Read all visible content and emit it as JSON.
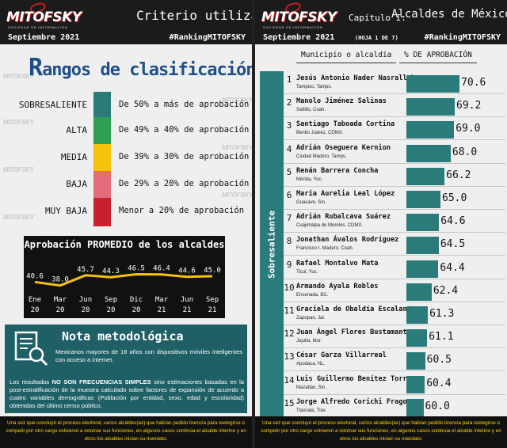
{
  "left": {
    "brand": {
      "name": "MITOFSKY",
      "tagline": "SOCIEDAD DE INFORMACIÓN"
    },
    "header_title": "Criterio utilizado",
    "date": "Septiembre 2021",
    "hashtag": "#RankingMITOFSKY",
    "rangos_title_first": "R",
    "rangos_title_rest": "angos de clasificación",
    "levels": [
      {
        "name": "SOBRESALIENTE",
        "desc": "De 50% a más de aprobación",
        "color": "#2a7b7a"
      },
      {
        "name": "ALTA",
        "desc": "De 49% a 40% de aprobación",
        "color": "#2f9e54"
      },
      {
        "name": "MEDIA",
        "desc": "De 39% a 30% de aprobación",
        "color": "#f4c20d"
      },
      {
        "name": "BAJA",
        "desc": "De 29% a 20% de aprobación",
        "color": "#e36b7a"
      },
      {
        "name": "MUY BAJA",
        "desc": "Menor a 20% de aprobación",
        "color": "#c8212e"
      }
    ],
    "nota_title": "Nota metodológica",
    "nota_p1": "Mexicanos mayores de 18 años con dispositivos móviles inteligentes con acceso a internet.",
    "nota_p2_before": "Los resultados ",
    "nota_p2_bold": "NO SON FRECUENCIAS SIMPLES",
    "nota_p2_after": " sino estimaciones basadas en la post-estratificación de la muestra calculado sobre factores de expansión de acuerdo a cuatro variables demográficas (Población por entidad, sexo, edad y escolaridad) obtenidas del último censo público.",
    "footer": "Una vez que concluyó el proceso electoral, varios alcaldes(as) que habían pedido licencia para reelegirse o competir por otro cargo volvieron a retomar sus funciones, en algunos casos continúa el alcalde interino y en otros los alcaldes inician su mandato."
  },
  "right": {
    "brand": {
      "name": "MITOFSKY",
      "tagline": "SOCIEDAD DE INFORMACIÓN"
    },
    "chapter_label": "Capítulo I:",
    "chapter_title": "Alcaldes de México",
    "date": "Septiembre 2021",
    "sheet": "(HOJA 1 DE 7)",
    "hashtag": "#RankingMITOFSKY",
    "col_municipio": "Municipio o alcaldía",
    "col_pct": "% DE APROBACIÓN",
    "category": "Sobresaliente",
    "footer": "Una vez que concluyó el proceso electoral, varios alcaldes(as) que habían pedido licencia para reelegirse o competir por otro cargo volvieron a retomar sus funciones, en algunos casos continúa el alcalde interino y en otros los alcaldes inician su mandato."
  },
  "watermark": "MITOFSKY",
  "chart_data": [
    {
      "type": "line",
      "title": "Aprobación  PROMEDIO  de  los  alcaldes",
      "x": [
        {
          "m": "Ene",
          "y": "20"
        },
        {
          "m": "Mar",
          "y": "20"
        },
        {
          "m": "Jun",
          "y": "20"
        },
        {
          "m": "Sep",
          "y": "20"
        },
        {
          "m": "Dic",
          "y": "20"
        },
        {
          "m": "Mar",
          "y": "21"
        },
        {
          "m": "Jun",
          "y": "21"
        },
        {
          "m": "Sep",
          "y": "21"
        }
      ],
      "values": [
        "40.6",
        "38.0",
        "45.7",
        "44.3",
        "46.5",
        "46.4",
        "44.6",
        "45.0"
      ],
      "line_color": "#f4c20d"
    },
    {
      "type": "bar",
      "orientation": "horizontal",
      "xlim": [
        0,
        75
      ],
      "bar_color": "#2a7b7a",
      "rows": [
        {
          "rank": "1",
          "name": "Jesús Antonio Nader Nasrallah",
          "place": "Tampico, Tamps.",
          "value": "70.6"
        },
        {
          "rank": "2",
          "name": "Manolo Jiménez Salinas",
          "place": "Saltillo, Coah.",
          "value": "69.2"
        },
        {
          "rank": "3",
          "name": "Santiago Taboada Cortina",
          "place": "Benito Juárez, CDMX.",
          "value": "69.0"
        },
        {
          "rank": "4",
          "name": "Adrián Oseguera Kernion",
          "place": "Ciudad Madero, Tamps.",
          "value": "68.0"
        },
        {
          "rank": "5",
          "name": "Renán Barrera Concha",
          "place": "Mérida, Yuc.",
          "value": "66.2"
        },
        {
          "rank": "6",
          "name": "María Aurelia Leal López",
          "place": "Guasave, Sin.",
          "value": "65.0"
        },
        {
          "rank": "7",
          "name": "Adrián Rubalcava Suárez",
          "place": "Cuajimalpa de Morelos, CDMX.",
          "value": "64.6"
        },
        {
          "rank": "8",
          "name": "Jonathan Ávalos Rodríguez",
          "place": "Francisco I. Madero, Coah.",
          "value": "64.5"
        },
        {
          "rank": "9",
          "name": "Rafael Montalvo Mata",
          "place": "Ticul, Yuc.",
          "value": "64.4"
        },
        {
          "rank": "10",
          "name": "Armando Ayala Robles",
          "place": "Ensenada, BC.",
          "value": "62.4"
        },
        {
          "rank": "11",
          "name": "Graciela de Obaldía Escalante",
          "place": "Zapopan, Jal.",
          "value": "61.3"
        },
        {
          "rank": "12",
          "name": "Juan Ángel Flores Bustamante",
          "place": "Jojutla, Mor.",
          "value": "61.1"
        },
        {
          "rank": "13",
          "name": "César Garza Villarreal",
          "place": "Apodaca, NL.",
          "value": "60.5"
        },
        {
          "rank": "14",
          "name": "Luis Guillermo Benítez Torres",
          "place": "Mazatlán, Sin.",
          "value": "60.4"
        },
        {
          "rank": "15",
          "name": "Jorge Alfredo Corichi Fragoso",
          "place": "Tlaxcala, Tlax.",
          "value": "60.0"
        }
      ]
    }
  ]
}
